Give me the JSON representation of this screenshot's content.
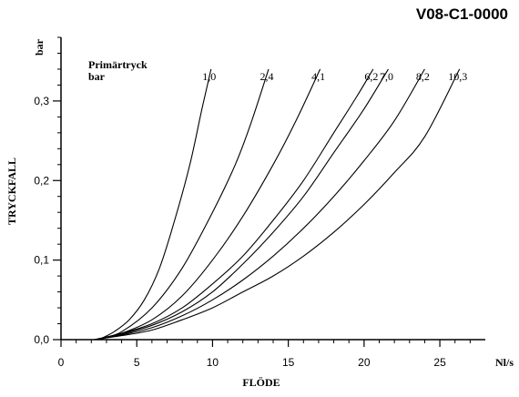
{
  "header": {
    "code": "V08-C1-0000"
  },
  "chart_data": {
    "type": "line",
    "title": "",
    "xlabel": "FLÖDE",
    "ylabel": "TRYCKFALL",
    "x_unit": "Nl/s",
    "y_unit": "bar",
    "xlim": [
      0,
      28
    ],
    "ylim": [
      0,
      0.38
    ],
    "xticks": [
      0,
      5,
      10,
      15,
      20,
      25
    ],
    "xtick_labels": [
      "0",
      "5",
      "10",
      "15",
      "20",
      "25"
    ],
    "yticks": [
      0,
      0.1,
      0.2,
      0.3
    ],
    "ytick_labels": [
      "0,0",
      "0,1",
      "0,2",
      "0,3"
    ],
    "legend_title": [
      "Primärtryck",
      "bar"
    ],
    "grid": false,
    "series": [
      {
        "name": "1,0",
        "points": [
          [
            2.5,
            0
          ],
          [
            3.5,
            0.01
          ],
          [
            4.5,
            0.025
          ],
          [
            5.5,
            0.05
          ],
          [
            6.5,
            0.09
          ],
          [
            7.5,
            0.15
          ],
          [
            8.5,
            0.22
          ],
          [
            9.3,
            0.29
          ],
          [
            9.9,
            0.34
          ]
        ]
      },
      {
        "name": "2,4",
        "points": [
          [
            2.5,
            0
          ],
          [
            4,
            0.01
          ],
          [
            6,
            0.04
          ],
          [
            8,
            0.09
          ],
          [
            10,
            0.16
          ],
          [
            11.5,
            0.22
          ],
          [
            12.5,
            0.27
          ],
          [
            13.7,
            0.34
          ]
        ]
      },
      {
        "name": "4,1",
        "points": [
          [
            2.3,
            0
          ],
          [
            4,
            0.008
          ],
          [
            6,
            0.025
          ],
          [
            8,
            0.055
          ],
          [
            10,
            0.1
          ],
          [
            12,
            0.155
          ],
          [
            14,
            0.22
          ],
          [
            15.5,
            0.275
          ],
          [
            17.1,
            0.34
          ]
        ]
      },
      {
        "name": "6,2",
        "points": [
          [
            2.2,
            0
          ],
          [
            4,
            0.008
          ],
          [
            6,
            0.02
          ],
          [
            8,
            0.04
          ],
          [
            10,
            0.07
          ],
          [
            12,
            0.105
          ],
          [
            14,
            0.15
          ],
          [
            16,
            0.2
          ],
          [
            18,
            0.26
          ],
          [
            19.5,
            0.305
          ],
          [
            20.6,
            0.34
          ]
        ]
      },
      {
        "name": "7,0",
        "points": [
          [
            2.2,
            0
          ],
          [
            4,
            0.007
          ],
          [
            6,
            0.018
          ],
          [
            8,
            0.035
          ],
          [
            10,
            0.06
          ],
          [
            12,
            0.095
          ],
          [
            14,
            0.135
          ],
          [
            16,
            0.18
          ],
          [
            18,
            0.235
          ],
          [
            20,
            0.29
          ],
          [
            21.6,
            0.34
          ]
        ]
      },
      {
        "name": "8,2",
        "points": [
          [
            2.2,
            0
          ],
          [
            4,
            0.006
          ],
          [
            6,
            0.015
          ],
          [
            8,
            0.03
          ],
          [
            10,
            0.05
          ],
          [
            12,
            0.075
          ],
          [
            14,
            0.105
          ],
          [
            16,
            0.14
          ],
          [
            18,
            0.18
          ],
          [
            20,
            0.225
          ],
          [
            22,
            0.275
          ],
          [
            24,
            0.34
          ]
        ]
      },
      {
        "name": "10,3",
        "points": [
          [
            2.2,
            0
          ],
          [
            4,
            0.005
          ],
          [
            6,
            0.012
          ],
          [
            8,
            0.025
          ],
          [
            10,
            0.04
          ],
          [
            12,
            0.06
          ],
          [
            14,
            0.08
          ],
          [
            16,
            0.105
          ],
          [
            18,
            0.135
          ],
          [
            20,
            0.17
          ],
          [
            22,
            0.21
          ],
          [
            24,
            0.255
          ],
          [
            26.3,
            0.34
          ]
        ]
      }
    ]
  }
}
